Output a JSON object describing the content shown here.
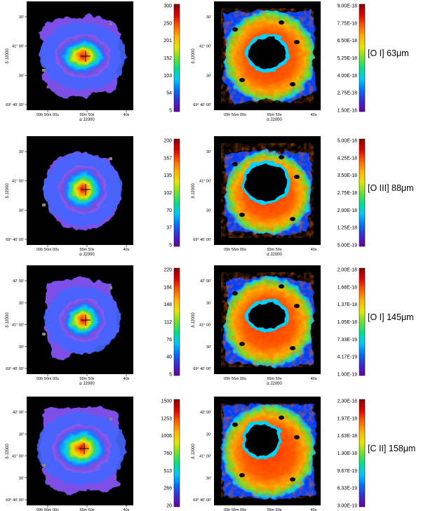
{
  "axes": {
    "x_label": "α J2000",
    "y_label": "δ J2000",
    "x_ticks": [
      "09h 56m 00s",
      "55m 50s",
      "40s"
    ]
  },
  "colors": {
    "background_map": "#000000",
    "colormap": [
      "#6a00a8",
      "#3a2bd0",
      "#0070ff",
      "#00c8ff",
      "#00e08a",
      "#6fe22a",
      "#e8e800",
      "#ffb000",
      "#ff5a00",
      "#e00000",
      "#8a0000"
    ]
  },
  "panels": [
    {
      "line_label": "[O I] 63μm",
      "y_ticks": [
        "30'",
        "41° 00'",
        "30'",
        "69° 40' 00'"
      ],
      "y_ticks_right": [
        "30'",
        "41° 00'",
        "30'",
        "69° 40' 00'"
      ],
      "colorbar_left": [
        "300",
        "250",
        "201",
        "152",
        "103",
        "54",
        "5"
      ],
      "colorbar_right": [
        "9.00E-18",
        "7.75E-18",
        "6.50E-18",
        "5.25E-18",
        "4.00E-18",
        "2.75E-18",
        "1.50E-18"
      ]
    },
    {
      "line_label": "[O III] 88μm",
      "y_ticks": [
        "30'",
        "41° 00'",
        "30'",
        "69° 40' 00'"
      ],
      "y_ticks_right": [
        "30'",
        "41° 00'",
        "30'",
        "69° 40' 00'"
      ],
      "colorbar_left": [
        "200",
        "167",
        "135",
        "102",
        "70",
        "37",
        "5"
      ],
      "colorbar_right": [
        "5.00E-18",
        "4.25E-18",
        "3.50E-18",
        "2.75E-18",
        "2.00E-18",
        "1.25E-18",
        "5.00E-19"
      ]
    },
    {
      "line_label": "[O I] 145μm",
      "y_ticks": [
        "42' 00'",
        "30'",
        "41° 00'",
        "30'",
        "69° 40' 00'"
      ],
      "y_ticks_right": [
        "42' 00'",
        "30'",
        "41° 00'",
        "30'",
        "69° 40' 00'"
      ],
      "colorbar_left": [
        "220",
        "184",
        "148",
        "112",
        "76",
        "40",
        "5"
      ],
      "colorbar_right": [
        "2.00E-18",
        "1.68E-18",
        "1.37E-18",
        "1.05E-18",
        "7.33E-19",
        "4.17E-19",
        "1.00E-19"
      ]
    },
    {
      "line_label": "[C II] 158μm",
      "y_ticks": [
        "42' 00'",
        "30'",
        "41° 00'",
        "30'",
        "69° 40' 00'"
      ],
      "y_ticks_right": [
        "42' 00'",
        "30'",
        "41° 00'",
        "30'",
        "69° 40' 00'"
      ],
      "colorbar_left": [
        "1500",
        "1253",
        "1006",
        "760",
        "513",
        "266",
        "20"
      ],
      "colorbar_right": [
        "2.30E-18",
        "1.97E-18",
        "1.63E-18",
        "1.30E-18",
        "9.67E-19",
        "6.33E-19",
        "3.00E-19"
      ]
    }
  ]
}
